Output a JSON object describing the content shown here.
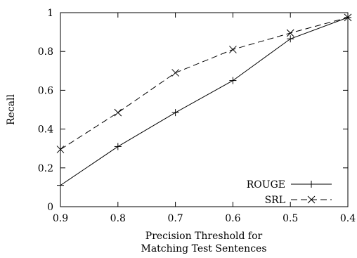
{
  "chart_data": {
    "type": "line",
    "title": "",
    "xlabel": [
      "Precision Threshold for",
      "Matching Test Sentences"
    ],
    "ylabel": "Recall",
    "x": [
      0.9,
      0.8,
      0.7,
      0.6,
      0.5,
      0.4
    ],
    "xlim": [
      0.9,
      0.4
    ],
    "ylim": [
      0,
      1
    ],
    "xticks": [
      "0.9",
      "0.8",
      "0.7",
      "0.6",
      "0.5",
      "0.4"
    ],
    "yticks": [
      "0",
      "0.2",
      "0.4",
      "0.6",
      "0.8",
      "1"
    ],
    "grid": false,
    "legend_position": "bottom-right",
    "series": [
      {
        "name": "ROUGE",
        "values": [
          0.11,
          0.31,
          0.485,
          0.65,
          0.865,
          0.975
        ],
        "line_style": "solid",
        "marker": "plus",
        "color": "#000000"
      },
      {
        "name": "SRL",
        "values": [
          0.295,
          0.485,
          0.69,
          0.81,
          0.895,
          0.975
        ],
        "line_style": "dashed",
        "marker": "cross",
        "color": "#000000"
      }
    ]
  }
}
